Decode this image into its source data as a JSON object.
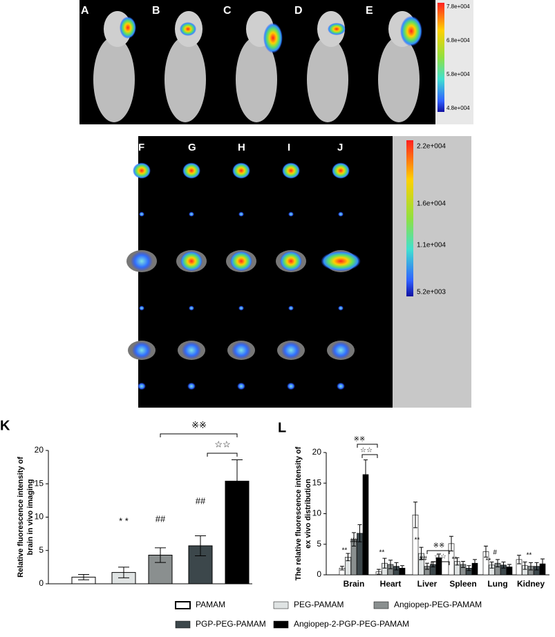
{
  "images": {
    "in_vivo_labels": [
      "A",
      "B",
      "C",
      "D",
      "E"
    ],
    "in_vivo_colorbar": [
      "7.8e+004",
      "6.8e+004",
      "5.8e+004",
      "4.8e+004"
    ],
    "ex_vivo_labels": [
      "F",
      "G",
      "H",
      "I",
      "J"
    ],
    "organs": [
      "Brain",
      "Heart",
      "Liver",
      "Spleen",
      "Lung",
      "Kidney"
    ],
    "ex_vivo_colorbar": [
      "2.2e+004",
      "1.6e+004",
      "1.1e+004",
      "5.2e+003"
    ]
  },
  "chart_data": [
    {
      "type": "bar",
      "panel": "K",
      "y_label": [
        "Relative fluorescence intensity of",
        "brain in vivo imaging"
      ],
      "values": [
        1.0,
        1.7,
        4.3,
        5.7,
        15.4
      ],
      "errors": [
        0.4,
        0.8,
        1.1,
        1.5,
        3.2
      ],
      "colors": [
        "#ffffff",
        "#dfe3e3",
        "#8a8f8f",
        "#3c474b",
        "#000000"
      ],
      "ylim": [
        0,
        20
      ],
      "yticks": [
        0,
        5,
        10,
        15,
        20
      ],
      "annotations": [
        "* *",
        "##",
        "##",
        "※※",
        "☆☆"
      ]
    },
    {
      "type": "grouped-bar",
      "panel": "L",
      "y_label": [
        "The relative fluorescence intensity of",
        "ex vivo distribution"
      ],
      "categories": [
        "Brain",
        "Heart",
        "Liver",
        "Spleen",
        "Lung",
        "Kidney"
      ],
      "series": [
        {
          "name": "PAMAM",
          "color": "#ffffff",
          "values": [
            1.1,
            0.5,
            9.8,
            5.1,
            3.8,
            2.5
          ],
          "errors": [
            0.3,
            0.4,
            2.1,
            1.2,
            0.9,
            0.7
          ]
        },
        {
          "name": "PEG-PAMAM",
          "color": "#dfe3e3",
          "values": [
            2.9,
            1.9,
            3.5,
            2.2,
            1.6,
            1.5
          ],
          "errors": [
            0.6,
            0.8,
            1.0,
            0.6,
            0.5,
            0.6
          ]
        },
        {
          "name": "Angiopep-PEG-PAMAM",
          "color": "#8a8f8f",
          "values": [
            5.8,
            1.7,
            1.4,
            1.7,
            1.9,
            1.4
          ],
          "errors": [
            1.1,
            0.7,
            0.5,
            0.5,
            0.6,
            0.6
          ]
        },
        {
          "name": "PGP-PEG-PAMAM",
          "color": "#3c474b",
          "values": [
            6.8,
            1.4,
            1.7,
            1.1,
            1.6,
            1.4
          ],
          "errors": [
            1.4,
            0.6,
            0.4,
            0.4,
            0.5,
            0.6
          ]
        },
        {
          "name": "Angiopep-2-PGP-PEG-PAMAM",
          "color": "#000000",
          "values": [
            16.4,
            1.1,
            2.8,
            1.9,
            1.3,
            1.8
          ],
          "errors": [
            2.4,
            0.4,
            0.6,
            0.6,
            0.4,
            0.8
          ]
        }
      ],
      "ylim": [
        0,
        20
      ],
      "yticks": [
        0,
        5,
        10,
        15,
        20
      ],
      "annotations": [
        "**",
        "##",
        "※※",
        "☆☆",
        "**",
        "**",
        "##",
        "※※",
        "☆☆",
        "**",
        "**",
        "#",
        "**"
      ]
    }
  ]
}
